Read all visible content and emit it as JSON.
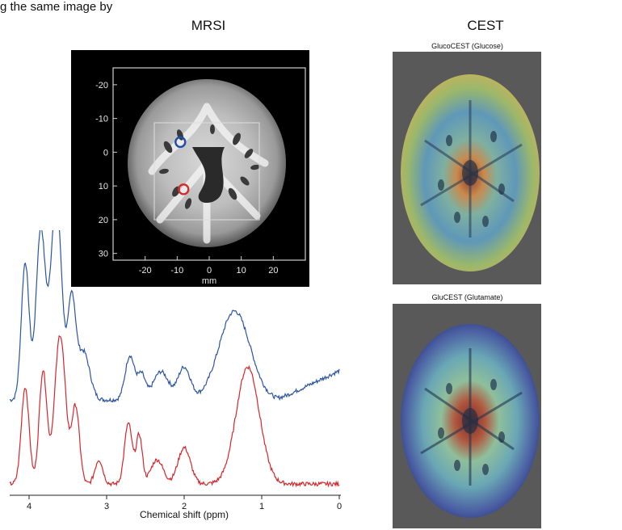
{
  "caption_fragment": "g the same image by",
  "mrsi": {
    "title": "MRSI",
    "image": {
      "y_ticks": [
        "-20",
        "-10",
        "0",
        "10",
        "20",
        "30"
      ],
      "x_ticks": [
        "-20",
        "-10",
        "0",
        "10",
        "20"
      ],
      "x_unit": "mm",
      "markers": [
        {
          "color": "#1f4fa8",
          "x_mm": -9,
          "y_mm": -3
        },
        {
          "color": "#d42a2a",
          "x_mm": -8,
          "y_mm": 11
        }
      ]
    },
    "spectrum": {
      "x_label": "Chemical shift (ppm)",
      "x_ticks": [
        "4",
        "3",
        "2",
        "1",
        "0"
      ],
      "series_colors": [
        "#2c55a0",
        "#d7262b"
      ]
    }
  },
  "cest": {
    "title": "CEST",
    "maps": [
      {
        "label": "GlucoCEST (Glucose)"
      },
      {
        "label": "GluCEST (Glutamate)"
      }
    ]
  }
}
